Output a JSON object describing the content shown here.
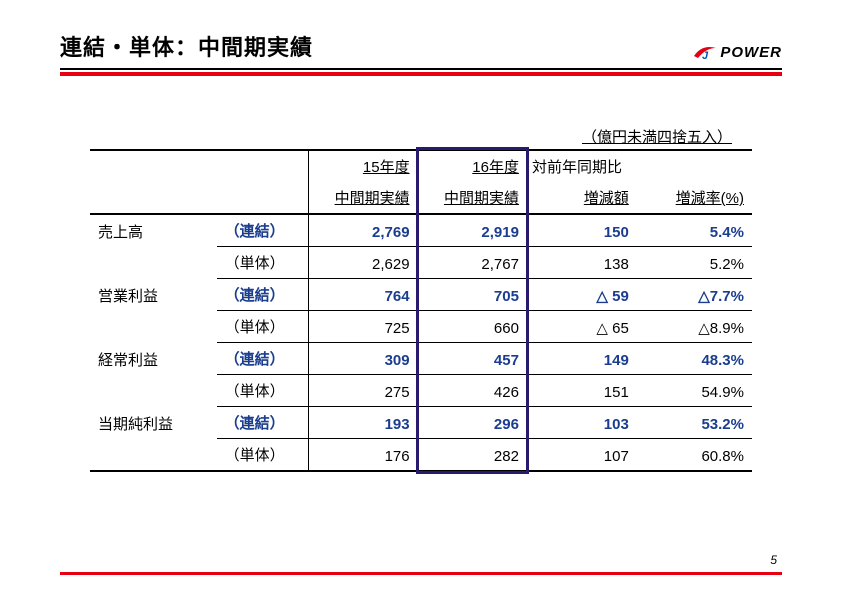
{
  "header": {
    "title": "連結・単体：中間期実績",
    "logo_text": "POWER",
    "logo_swoosh_color": "#e60012",
    "logo_j_color": "#0055a5"
  },
  "accent_color": "#e60012",
  "highlight_border_color": "#2a1a6e",
  "unit_note": "（億円未満四捨五入）",
  "table": {
    "col_headers": {
      "fy15": "15年度",
      "fy16": "16年度",
      "vs_prev": "対前年同期比",
      "mid15": "中間期実績",
      "mid16": "中間期実績",
      "diff": "増減額",
      "rate": "増減率(%)"
    },
    "type_labels": {
      "consolidated": "（連結）",
      "standalone": "（単体）"
    },
    "rows": [
      {
        "label": "売上高",
        "consolidated": {
          "fy15": "2,769",
          "fy16": "2,919",
          "diff": "150",
          "rate": "5.4%"
        },
        "standalone": {
          "fy15": "2,629",
          "fy16": "2,767",
          "diff": "138",
          "rate": "5.2%"
        }
      },
      {
        "label": "営業利益",
        "consolidated": {
          "fy15": "764",
          "fy16": "705",
          "diff": "△ 59",
          "rate": "△7.7%"
        },
        "standalone": {
          "fy15": "725",
          "fy16": "660",
          "diff": "△ 65",
          "rate": "△8.9%"
        }
      },
      {
        "label": "経常利益",
        "consolidated": {
          "fy15": "309",
          "fy16": "457",
          "diff": "149",
          "rate": "48.3%"
        },
        "standalone": {
          "fy15": "275",
          "fy16": "426",
          "diff": "151",
          "rate": "54.9%"
        }
      },
      {
        "label": "当期純利益",
        "consolidated": {
          "fy15": "193",
          "fy16": "296",
          "diff": "103",
          "rate": "53.2%"
        },
        "standalone": {
          "fy15": "176",
          "fy16": "282",
          "diff": "107",
          "rate": "60.8%"
        }
      }
    ]
  },
  "page_number": "5"
}
